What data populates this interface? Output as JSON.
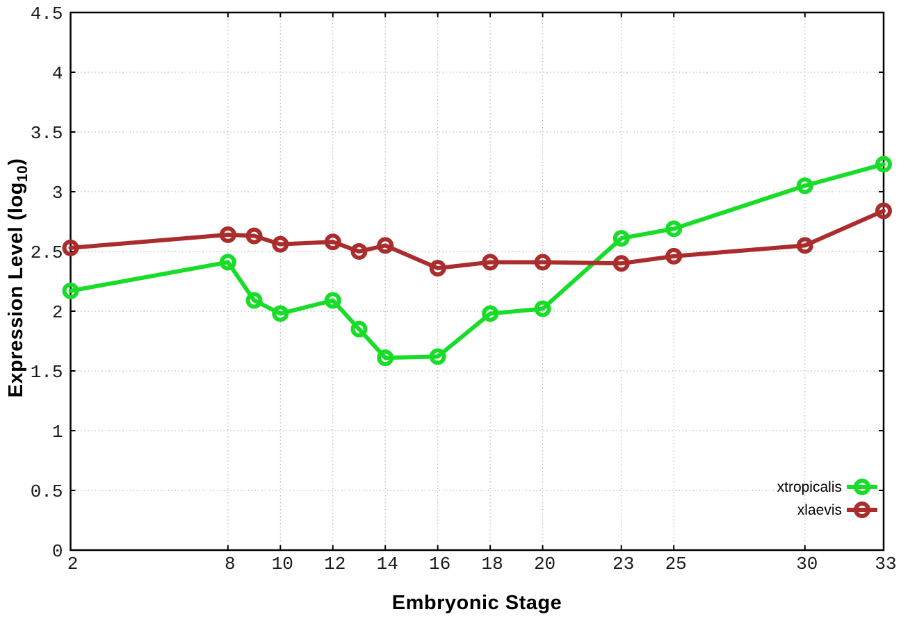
{
  "chart_data": {
    "type": "line",
    "title": "",
    "xlabel": "Embryonic Stage",
    "ylabel_prefix": "Expression Level (log",
    "ylabel_sub": "10",
    "ylabel_suffix": ")",
    "x": [
      2,
      8,
      9,
      10,
      12,
      13,
      14,
      16,
      18,
      20,
      23,
      25,
      30,
      33
    ],
    "xlim": [
      2,
      33
    ],
    "ylim": [
      0,
      4.5
    ],
    "x_ticks": [
      2,
      8,
      10,
      12,
      14,
      16,
      18,
      20,
      23,
      25,
      30,
      33
    ],
    "x_tick_labels": [
      "2",
      "8",
      "10",
      "12",
      "14",
      "16",
      "18",
      "20",
      "23",
      "25",
      "30",
      "33"
    ],
    "y_ticks": [
      0,
      0.5,
      1,
      1.5,
      2,
      2.5,
      3,
      3.5,
      4,
      4.5
    ],
    "y_tick_labels": [
      "0",
      "0.5",
      "1",
      "1.5",
      "2",
      "2.5",
      "3",
      "3.5",
      "4",
      "4.5"
    ],
    "grid": true,
    "marker": "open-circle",
    "legend_position": "inside-bottom-right",
    "series": [
      {
        "name": "xtropicalis",
        "color": "#17dc28",
        "values": [
          2.17,
          2.41,
          2.09,
          1.98,
          2.09,
          1.85,
          1.61,
          1.62,
          1.98,
          2.02,
          2.61,
          2.69,
          3.05,
          3.23
        ]
      },
      {
        "name": "xlaevis",
        "color": "#aa2c2c",
        "values": [
          2.53,
          2.64,
          2.63,
          2.56,
          2.58,
          2.5,
          2.55,
          2.36,
          2.41,
          2.41,
          2.4,
          2.46,
          2.55,
          2.84
        ]
      }
    ],
    "style": {
      "grid_color": "#aaaaaa",
      "border_color": "#000000",
      "line_width": 6,
      "marker_radius": 9
    }
  }
}
